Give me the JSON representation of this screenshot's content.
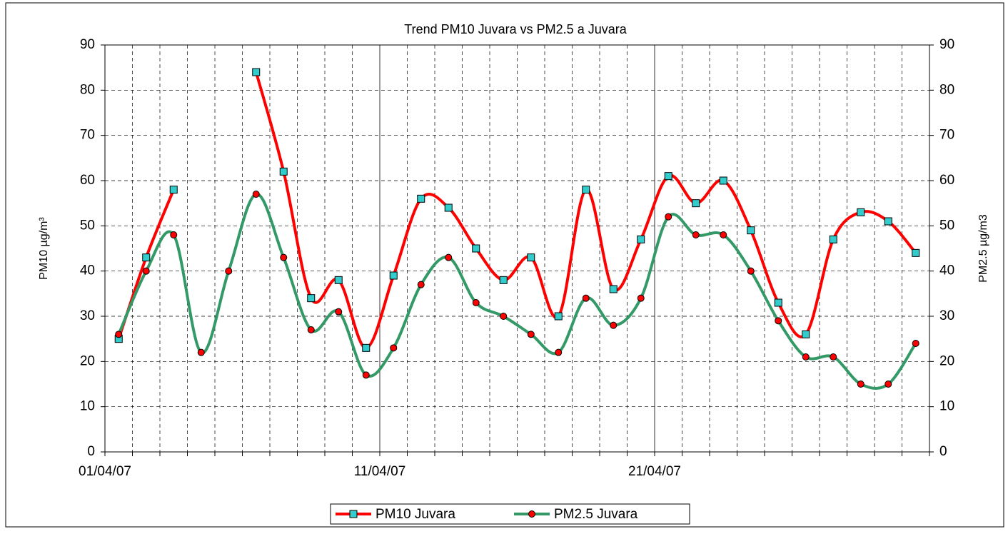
{
  "chart_data": {
    "type": "line",
    "title": "Trend PM10 Juvara vs PM2.5 a Juvara",
    "y_label": "PM10 µg/m³",
    "y2_label": "PM2.5 µg/m3",
    "categories": [
      "01/04/07",
      null,
      null,
      null,
      null,
      null,
      null,
      null,
      null,
      null,
      "11/04/07",
      null,
      null,
      null,
      null,
      null,
      null,
      null,
      null,
      null,
      "21/04/07",
      null,
      null,
      null,
      null,
      null,
      null,
      null,
      null,
      null
    ],
    "series": [
      {
        "name": "PM10 Juvara",
        "color": "#ff0000",
        "marker_color": "#33cccc",
        "marker": "square",
        "values": [
          25,
          43,
          58,
          null,
          null,
          84,
          62,
          34,
          38,
          23,
          39,
          56,
          54,
          45,
          38,
          43,
          30,
          58,
          36,
          47,
          61,
          55,
          60,
          49,
          33,
          26,
          47,
          53,
          51,
          44
        ]
      },
      {
        "name": "PM2.5 Juvara",
        "color": "#339966",
        "marker_color": "#ff0000",
        "marker": "circle",
        "axis": "y2",
        "values": [
          26,
          40,
          48,
          22,
          40,
          57,
          43,
          27,
          31,
          17,
          23,
          37,
          43,
          33,
          30,
          26,
          22,
          34,
          28,
          34,
          52,
          48,
          48,
          40,
          29,
          21,
          21,
          15,
          15,
          24
        ]
      }
    ],
    "ylim": [
      0,
      90
    ],
    "yticks": [
      0,
      10,
      20,
      30,
      40,
      50,
      60,
      70,
      80,
      90
    ],
    "y2lim": [
      0,
      90
    ],
    "y2ticks": [
      0,
      10,
      20,
      30,
      40,
      50,
      60,
      70,
      80,
      90
    ],
    "grid": true,
    "legend": "bottom"
  }
}
